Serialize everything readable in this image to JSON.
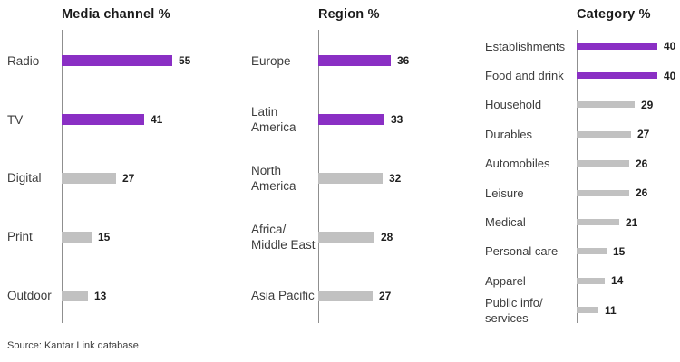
{
  "source": "Source: Kantar Link database",
  "colors": {
    "highlight": "#8A2FC4",
    "muted": "#C1C1C1",
    "axis": "#8F8F8F",
    "title_text": "#1A1A1A",
    "label_text": "#3D3D3D"
  },
  "chart_data": [
    {
      "type": "bar",
      "orientation": "horizontal",
      "title": "Media channel %",
      "unit": "%",
      "xlim": [
        0,
        60
      ],
      "grid": false,
      "categories": [
        "Radio",
        "TV",
        "Digital",
        "Print",
        "Outdoor"
      ],
      "values": [
        55,
        41,
        27,
        15,
        13
      ],
      "highlighted": [
        true,
        true,
        false,
        false,
        false
      ]
    },
    {
      "type": "bar",
      "orientation": "horizontal",
      "title": "Region %",
      "unit": "%",
      "xlim": [
        0,
        60
      ],
      "grid": false,
      "categories": [
        "Europe",
        "Latin\nAmerica",
        "North\nAmerica",
        "Africa/\nMiddle East",
        "Asia Pacific"
      ],
      "values": [
        36,
        33,
        32,
        28,
        27
      ],
      "highlighted": [
        true,
        true,
        false,
        false,
        false
      ]
    },
    {
      "type": "bar",
      "orientation": "horizontal",
      "title": "Category %",
      "unit": "%",
      "xlim": [
        0,
        60
      ],
      "grid": false,
      "categories": [
        "Establishments",
        "Food and drink",
        "Household",
        "Durables",
        "Automobiles",
        "Leisure",
        "Medical",
        "Personal care",
        "Apparel",
        "Public info/\nservices"
      ],
      "values": [
        40,
        40,
        29,
        27,
        26,
        26,
        21,
        15,
        14,
        11
      ],
      "highlighted": [
        true,
        true,
        false,
        false,
        false,
        false,
        false,
        false,
        false,
        false
      ]
    }
  ]
}
